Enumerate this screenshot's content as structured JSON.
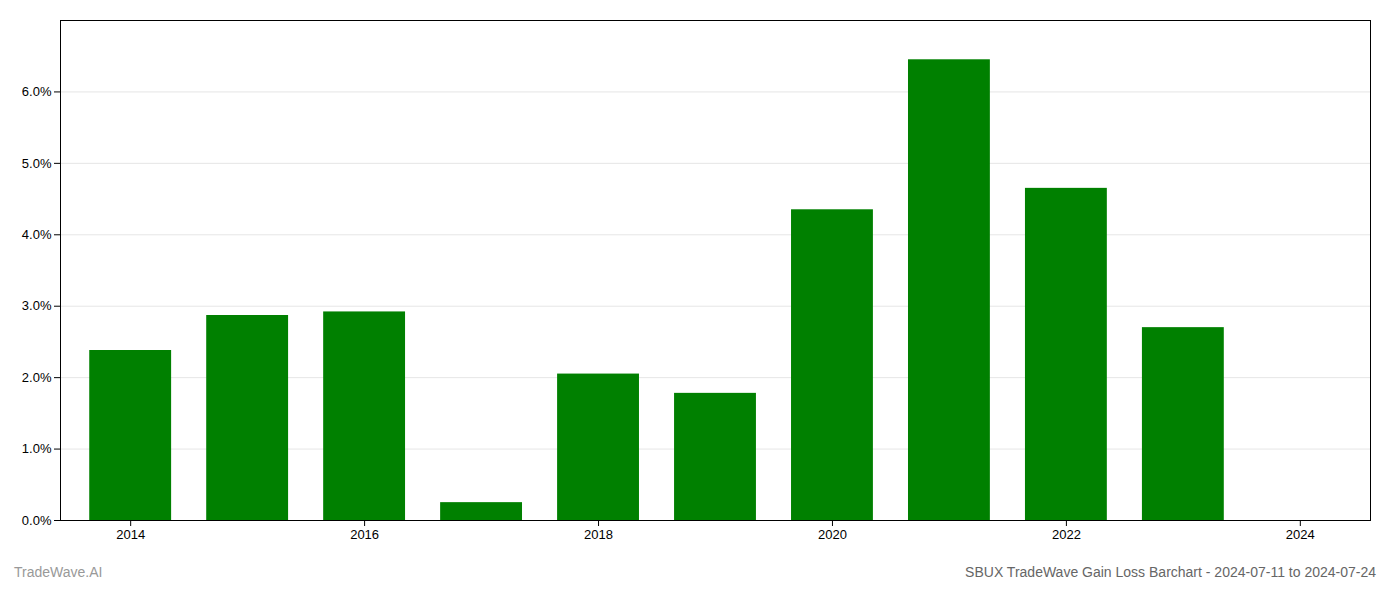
{
  "chart_data": {
    "type": "bar",
    "title": "SBUX TradeWave Gain Loss Barchart - 2024-07-11 to 2024-07-24",
    "annotations": [
      "TradeWave.AI"
    ],
    "x": [
      2014,
      2015,
      2016,
      2017,
      2018,
      2019,
      2020,
      2021,
      2022,
      2023
    ],
    "values": [
      0.0238,
      0.0287,
      0.0292,
      0.0025,
      0.0205,
      0.0178,
      0.0435,
      0.0645,
      0.0465,
      0.027
    ],
    "color": "#008000",
    "xlim": [
      2013.4,
      2024.6
    ],
    "xticks": [
      2014,
      2016,
      2018,
      2020,
      2022,
      2024
    ],
    "ylim": [
      0.0,
      0.07
    ],
    "yticks": [
      {
        "value": 0.0,
        "label": "0.0%"
      },
      {
        "value": 0.01,
        "label": "1.0%"
      },
      {
        "value": 0.02,
        "label": "2.0%"
      },
      {
        "value": 0.03,
        "label": "3.0%"
      },
      {
        "value": 0.04,
        "label": "4.0%"
      },
      {
        "value": 0.05,
        "label": "5.0%"
      },
      {
        "value": 0.06,
        "label": "6.0%"
      }
    ],
    "grid": true
  }
}
